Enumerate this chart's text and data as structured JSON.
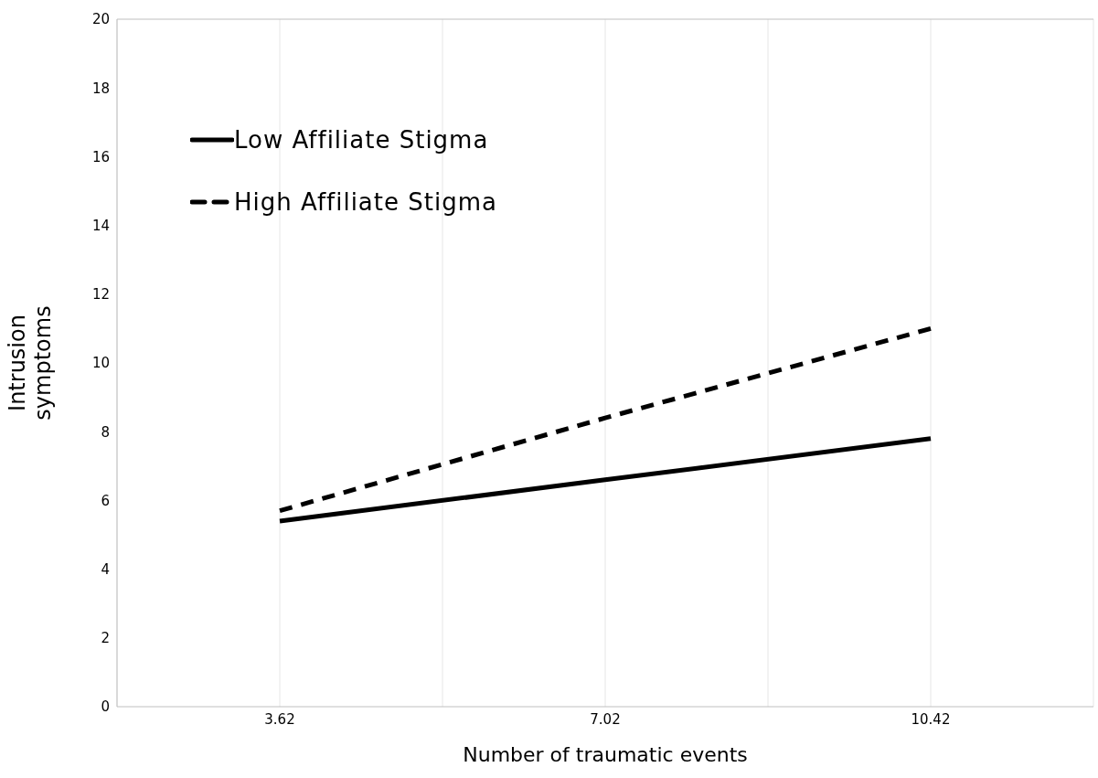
{
  "chart_data": {
    "type": "line",
    "xlabel": "Number of traumatic events",
    "ylabel": "Intrusion symptoms",
    "x": [
      3.62,
      7.02,
      10.42
    ],
    "series": [
      {
        "name": "Low Affiliate Stigma",
        "color": "#000000",
        "line_style": "solid",
        "values": [
          5.4,
          6.6,
          7.8
        ]
      },
      {
        "name": "High Affiliate Stigma",
        "color": "#000000",
        "line_style": "dashed",
        "values": [
          5.7,
          8.4,
          11.0
        ]
      }
    ],
    "xlim": [
      1.92,
      12.12
    ],
    "xticks": [
      3.62,
      {
        "value": 5.32,
        "label": null
      },
      7.02,
      {
        "value": 8.72,
        "label": null
      },
      10.42
    ],
    "ylim": [
      0,
      20
    ],
    "yticks": [
      0,
      2,
      4,
      6,
      8,
      10,
      12,
      14,
      16,
      18,
      20
    ],
    "grid": "x",
    "legend": "top left"
  }
}
